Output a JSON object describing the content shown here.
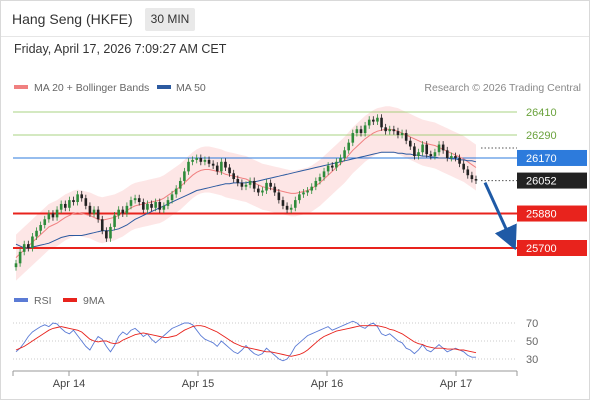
{
  "header": {
    "title": "Hang Seng (HKFE)",
    "timeframe": "30 MIN"
  },
  "date_line": "Friday, April 17, 2026 7:09:27 AM CET",
  "legend": {
    "ma20": "MA 20 + Bollinger Bands",
    "ma50": "MA 50",
    "credit": "Research © 2026 Trading Central",
    "rsi": "RSI",
    "rsi_ma": "9MA"
  },
  "colors": {
    "ma20": "#f08080",
    "ma50": "#2c5aa0",
    "bull": "#2e8b3a",
    "bear": "#222222",
    "resistance": "#8dc45a",
    "pivot": "#2d7bdc",
    "support": "#e8231d",
    "arrow": "#1f5aa6",
    "band_fill": "#fde3e3",
    "rsi_line": "#5b7bd5",
    "rsi_ma_line": "#e8231d"
  },
  "chart_data": [
    {
      "type": "candlestick",
      "levels": [
        {
          "value": 26410,
          "label": "26410",
          "kind": "resistance"
        },
        {
          "value": 26290,
          "label": "26290",
          "kind": "resistance"
        },
        {
          "value": 26170,
          "label": "26170",
          "kind": "pivot"
        },
        {
          "value": 26052,
          "label": "26052",
          "kind": "last_price"
        },
        {
          "value": 25880,
          "label": "25880",
          "kind": "support"
        },
        {
          "value": 25700,
          "label": "25700",
          "kind": "support"
        }
      ],
      "x_tick_labels": [
        "Apr 14",
        "Apr 15",
        "Apr 16",
        "Apr 17"
      ],
      "scenario_arrow": {
        "from": 26052,
        "to": 25700
      },
      "closes": [
        25620,
        25680,
        25720,
        25700,
        25760,
        25790,
        25820,
        25850,
        25880,
        25860,
        25900,
        25930,
        25910,
        25950,
        25940,
        25980,
        25960,
        25920,
        25880,
        25900,
        25850,
        25790,
        25750,
        25810,
        25870,
        25900,
        25880,
        25920,
        25950,
        25960,
        25940,
        25900,
        25930,
        25910,
        25940,
        25900,
        25920,
        25950,
        25980,
        26010,
        26050,
        26100,
        26150,
        26160,
        26170,
        26150,
        26160,
        26140,
        26130,
        26100,
        26150,
        26120,
        26090,
        26060,
        26040,
        26020,
        26030,
        26050,
        26010,
        25990,
        26000,
        26040,
        26020,
        25990,
        25950,
        25920,
        25900,
        25910,
        25950,
        25980,
        25990,
        26000,
        26020,
        26050,
        26070,
        26100,
        26130,
        26120,
        26150,
        26170,
        26210,
        26250,
        26300,
        26320,
        26300,
        26340,
        26370,
        26360,
        26380,
        26330,
        26310,
        26320,
        26310,
        26290,
        26300,
        26260,
        26230,
        26180,
        26200,
        26240,
        26190,
        26180,
        26200,
        26240,
        26210,
        26170,
        26180,
        26170,
        26140,
        26110,
        26080,
        26060,
        26052
      ],
      "ma20": [
        25650,
        25670,
        25690,
        25710,
        25730,
        25750,
        25770,
        25790,
        25810,
        25820,
        25830,
        25845,
        25860,
        25870,
        25880,
        25885,
        25880,
        25875,
        25870,
        25860,
        25850,
        25845,
        25850,
        25855,
        25860,
        25870,
        25880,
        25895,
        25910,
        25920,
        25925,
        25930,
        25935,
        25940,
        25945,
        25950,
        25960,
        25975,
        25990,
        26005,
        26020,
        26040,
        26060,
        26080,
        26095,
        26105,
        26110,
        26110,
        26105,
        26100,
        26095,
        26085,
        26080,
        26075,
        26070,
        26065,
        26060,
        26050,
        26040,
        26030,
        26020,
        26015,
        26010,
        26005,
        26000,
        25995,
        25990,
        25985,
        25985,
        25990,
        25995,
        26000,
        26010,
        26025,
        26040,
        26060,
        26080,
        26100,
        26120,
        26140,
        26160,
        26185,
        26210,
        26230,
        26250,
        26270,
        26285,
        26300,
        26310,
        26315,
        26320,
        26320,
        26315,
        26310,
        26300,
        26290,
        26280,
        26270,
        26260,
        26250,
        26245,
        26240,
        26235,
        26225,
        26215,
        26205,
        26195,
        26185,
        26175,
        26165,
        26150,
        26135,
        26120
      ],
      "ma50": [
        25720,
        25710,
        25700,
        25700,
        25705,
        25710,
        25715,
        25720,
        25725,
        25735,
        25745,
        25755,
        25760,
        25765,
        25765,
        25765,
        25765,
        25770,
        25775,
        25780,
        25785,
        25790,
        25790,
        25790,
        25795,
        25800,
        25810,
        25820,
        25835,
        25850,
        25860,
        25870,
        25880,
        25890,
        25900,
        25910,
        25920,
        25930,
        25940,
        25950,
        25960,
        25970,
        25980,
        25990,
        26000,
        26005,
        26010,
        26015,
        26020,
        26025,
        26030,
        26035,
        26035,
        26040,
        26040,
        26040,
        26040,
        26045,
        26045,
        26050,
        26055,
        26060,
        26065,
        26070,
        26075,
        26080,
        26085,
        26090,
        26095,
        26100,
        26105,
        26110,
        26115,
        26120,
        26125,
        26130,
        26135,
        26140,
        26145,
        26150,
        26155,
        26160,
        26165,
        26170,
        26175,
        26180,
        26185,
        26190,
        26195,
        26200,
        26200,
        26200,
        26200,
        26195,
        26195,
        26190,
        26190,
        26185,
        26185,
        26180,
        26180,
        26175,
        26175,
        26170,
        26170,
        26170,
        26165,
        26165,
        26160,
        26160,
        26155,
        26155,
        26150
      ],
      "bollinger_width": 120
    },
    {
      "type": "line",
      "title": "RSI",
      "y_tick_labels": [
        "70",
        "50",
        "30"
      ],
      "rsi": [
        38,
        42,
        48,
        55,
        60,
        63,
        66,
        68,
        66,
        70,
        69,
        64,
        60,
        58,
        62,
        56,
        50,
        44,
        40,
        48,
        55,
        52,
        44,
        38,
        45,
        55,
        60,
        57,
        62,
        64,
        60,
        55,
        58,
        52,
        48,
        52,
        56,
        60,
        64,
        66,
        68,
        70,
        70,
        68,
        62,
        56,
        52,
        50,
        48,
        44,
        50,
        46,
        42,
        38,
        36,
        40,
        45,
        40,
        36,
        34,
        36,
        42,
        38,
        34,
        30,
        28,
        30,
        36,
        44,
        48,
        52,
        56,
        58,
        60,
        62,
        64,
        66,
        62,
        64,
        66,
        68,
        70,
        72,
        70,
        66,
        64,
        68,
        70,
        66,
        58,
        56,
        58,
        54,
        50,
        48,
        42,
        40,
        36,
        40,
        46,
        40,
        38,
        42,
        46,
        42,
        38,
        40,
        42,
        40,
        38,
        34,
        32,
        32
      ],
      "rsi_ma": [
        40,
        42,
        44,
        47,
        50,
        53,
        56,
        59,
        62,
        64,
        65,
        66,
        65,
        64,
        63,
        62,
        60,
        56,
        52,
        50,
        49,
        50,
        50,
        48,
        47,
        48,
        51,
        53,
        55,
        57,
        58,
        59,
        58,
        57,
        56,
        55,
        54,
        54,
        55,
        56,
        59,
        62,
        64,
        66,
        67,
        67,
        66,
        64,
        62,
        60,
        57,
        54,
        51,
        48,
        46,
        44,
        43,
        42,
        41,
        40,
        39,
        38,
        38,
        37,
        36,
        35,
        34,
        33,
        34,
        35,
        37,
        40,
        44,
        48,
        52,
        55,
        57,
        59,
        61,
        62,
        63,
        64,
        65,
        66,
        67,
        67,
        67,
        67,
        67,
        66,
        65,
        63,
        62,
        60,
        58,
        55,
        52,
        49,
        47,
        46,
        44,
        43,
        42,
        42,
        42,
        41,
        41,
        41,
        40,
        40,
        39,
        38,
        37
      ]
    }
  ]
}
